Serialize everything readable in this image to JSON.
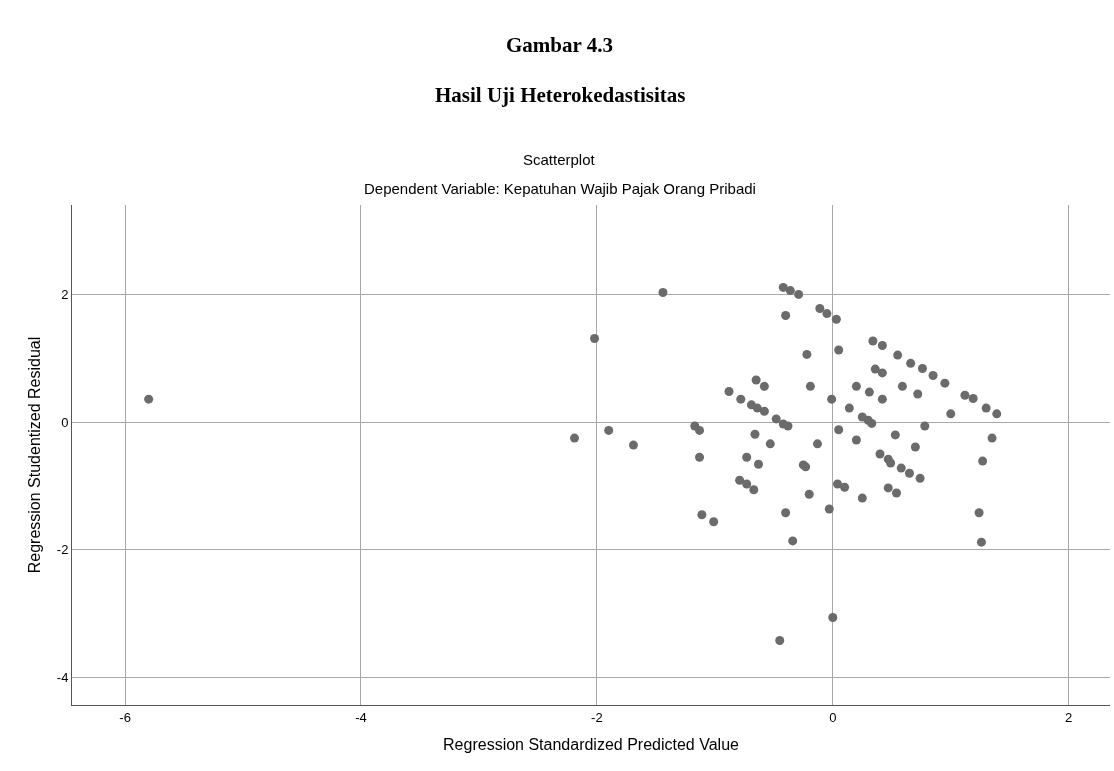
{
  "chart_data": {
    "type": "scatter",
    "title": "Gambar 4.3",
    "subtitle": "Hasil Uji Heterokedastisitas",
    "annotations": [
      "Scatterplot",
      "Dependent Variable: Kepatuhan Wajib Pajak Orang Pribadi"
    ],
    "xlabel": "Regression Standardized Predicted Value",
    "ylabel": "Regression Studentized Residual",
    "xlim": [
      -6.45,
      2.35
    ],
    "ylim": [
      -4.43,
      3.4
    ],
    "xticks": [
      {
        "value": -6,
        "label": "-6"
      },
      {
        "value": -4,
        "label": "-4"
      },
      {
        "value": -2,
        "label": "-2"
      },
      0,
      2
    ],
    "yticks": [
      {
        "value": -4,
        "label": "-4"
      },
      {
        "value": -2,
        "label": "-2"
      },
      0,
      2
    ],
    "grid": true,
    "marker": "circle",
    "series": [
      {
        "color": "#6b6b6b",
        "x": [
          -5.8,
          -1.44,
          -2.02,
          -2.19,
          -1.9,
          -1.69,
          -1.17,
          -1.13,
          -1.13,
          -0.88,
          -0.78,
          -0.69,
          -0.64,
          -0.58,
          -0.65,
          -0.58,
          -0.48,
          -0.42,
          -0.38,
          -0.66,
          -0.53,
          -0.73,
          -0.63,
          -0.79,
          -0.73,
          -0.67,
          -0.42,
          -0.36,
          -0.29,
          -0.4,
          -0.11,
          -0.05,
          0.03,
          -0.22,
          -0.19,
          -0.01,
          -0.13,
          -0.25,
          -0.23,
          0.05,
          -0.2,
          0.05,
          0.34,
          0.42,
          0.55,
          0.66,
          0.76,
          0.85,
          0.95,
          0.36,
          0.42,
          0.2,
          0.31,
          0.42,
          0.59,
          0.72,
          0.14,
          0.25,
          0.3,
          0.33,
          1.12,
          1.19,
          1.3,
          1.39,
          1.0,
          0.2,
          0.53,
          0.78,
          0.7,
          1.35,
          0.4,
          0.47,
          0.49,
          0.58,
          0.65,
          0.74,
          1.27,
          0.04,
          0.1,
          0.47,
          0.54,
          0.25,
          -1.11,
          -1.01,
          -0.4,
          -0.03,
          -0.34,
          1.24,
          1.26,
          0.0,
          -0.45
        ],
        "values": [
          0.36,
          2.03,
          1.31,
          -0.25,
          -0.13,
          -0.36,
          -0.06,
          -0.13,
          -0.55,
          0.48,
          0.36,
          0.27,
          0.22,
          0.17,
          0.66,
          0.56,
          0.05,
          -0.03,
          -0.06,
          -0.19,
          -0.34,
          -0.55,
          -0.66,
          -0.91,
          -0.97,
          -1.06,
          2.11,
          2.06,
          2.0,
          1.67,
          1.78,
          1.7,
          1.61,
          1.06,
          0.56,
          0.36,
          -0.34,
          -0.67,
          -0.7,
          -0.12,
          -1.13,
          1.13,
          1.27,
          1.2,
          1.05,
          0.92,
          0.84,
          0.73,
          0.61,
          0.83,
          0.77,
          0.56,
          0.47,
          0.36,
          0.56,
          0.44,
          0.22,
          0.08,
          0.03,
          -0.02,
          0.42,
          0.37,
          0.22,
          0.13,
          0.13,
          -0.28,
          -0.2,
          -0.06,
          -0.39,
          -0.25,
          -0.5,
          -0.58,
          -0.64,
          -0.72,
          -0.8,
          -0.88,
          -0.61,
          -0.97,
          -1.02,
          -1.03,
          -1.11,
          -1.19,
          -1.45,
          -1.56,
          -1.42,
          -1.36,
          -1.86,
          -1.42,
          -1.88,
          -3.06,
          -3.42
        ]
      }
    ]
  }
}
